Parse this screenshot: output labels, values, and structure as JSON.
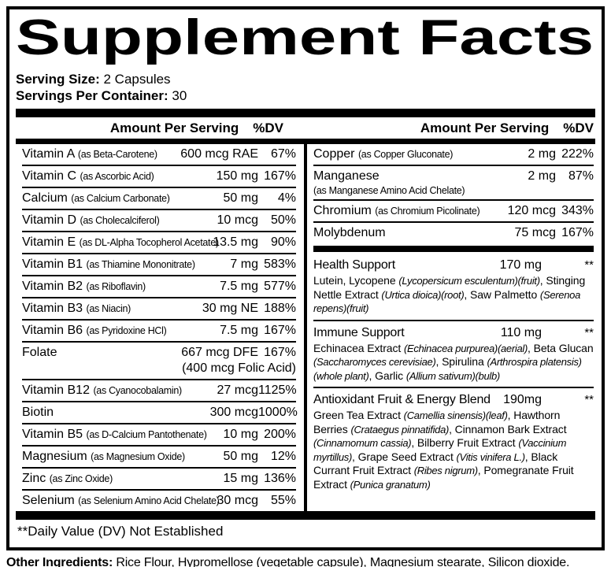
{
  "title": "Supplement Facts",
  "serving": {
    "size_label": "Serving Size:",
    "size_value": "2 Capsules",
    "per_container_label": "Servings Per Container:",
    "per_container_value": "30"
  },
  "columns": {
    "amount_header": "Amount Per Serving",
    "dv_header": "%DV"
  },
  "left_rows": [
    {
      "name": "Vitamin A",
      "form": "(as Beta-Carotene)",
      "amount": "600 mcg RAE",
      "dv": "67%"
    },
    {
      "name": "Vitamin C",
      "form": "(as Ascorbic Acid)",
      "amount": "150 mg",
      "dv": "167%"
    },
    {
      "name": "Calcium",
      "form": "(as Calcium Carbonate)",
      "amount": "50 mg",
      "dv": "4%"
    },
    {
      "name": "Vitamin D",
      "form": "(as Cholecalciferol)",
      "amount": "10 mcg",
      "dv": "50%"
    },
    {
      "name": "Vitamin E",
      "form": "(as DL-Alpha Tocopherol Acetate)",
      "amount": "13.5 mg",
      "dv": "90%"
    },
    {
      "name": "Vitamin B1",
      "form": "(as Thiamine Mononitrate)",
      "amount": "7 mg",
      "dv": "583%"
    },
    {
      "name": "Vitamin B2",
      "form": "(as Riboflavin)",
      "amount": "7.5 mg",
      "dv": "577%"
    },
    {
      "name": "Vitamin B3",
      "form": "(as Niacin)",
      "amount": "30 mg NE",
      "dv": "188%"
    },
    {
      "name": "Vitamin B6",
      "form": "(as Pyridoxine HCl)",
      "amount": "7.5 mg",
      "dv": "167%"
    },
    {
      "name": "Folate",
      "amount": "667 mcg DFE",
      "amount2": "(400 mcg Folic Acid)",
      "dv": "167%"
    },
    {
      "name": "Vitamin B12",
      "form": "(as Cyanocobalamin)",
      "amount": "27 mcg",
      "dv": "1125%"
    },
    {
      "name": "Biotin",
      "amount": "300 mcg",
      "dv": "1000%"
    },
    {
      "name": "Vitamin B5",
      "form": "(as D-Calcium Pantothenate)",
      "amount": "10 mg",
      "dv": "200%"
    },
    {
      "name": "Magnesium",
      "form": "(as Magnesium Oxide)",
      "amount": "50 mg",
      "dv": "12%"
    },
    {
      "name": "Zinc",
      "form": "(as Zinc Oxide)",
      "amount": "15 mg",
      "dv": "136%"
    },
    {
      "name": "Selenium",
      "form": "(as Selenium Amino Acid Chelate)",
      "amount": "30 mcg",
      "dv": "55%"
    }
  ],
  "right_minerals": [
    {
      "name": "Copper",
      "form": "(as Copper Gluconate)",
      "amount": "2 mg",
      "dv": "222%"
    },
    {
      "name": "Manganese",
      "form_below": "(as Manganese Amino Acid Chelate)",
      "amount": "2 mg",
      "dv": "87%"
    },
    {
      "name": "Chromium",
      "form": "(as Chromium Picolinate)",
      "amount": "120 mcg",
      "dv": "343%"
    },
    {
      "name": "Molybdenum",
      "amount": "75 mcg",
      "dv": "167%"
    }
  ],
  "blends": [
    {
      "name": "Health Support",
      "amount": "170 mg",
      "dv": "**",
      "desc": [
        {
          "text": "Lutein, Lycopene ",
          "italic": false
        },
        {
          "text": "(Lycopersicum esculentum)(fruit)",
          "italic": true
        },
        {
          "text": ", Stinging Nettle Extract ",
          "italic": false
        },
        {
          "text": "(Urtica dioica)(root)",
          "italic": true
        },
        {
          "text": ", Saw Palmetto ",
          "italic": false
        },
        {
          "text": "(Serenoa repens)(fruit)",
          "italic": true
        }
      ]
    },
    {
      "name": "Immune Support",
      "amount": "110 mg",
      "dv": "**",
      "desc": [
        {
          "text": "Echinacea Extract ",
          "italic": false
        },
        {
          "text": "(Echinacea purpurea)(aerial)",
          "italic": true
        },
        {
          "text": ", Beta Glucan ",
          "italic": false
        },
        {
          "text": "(Saccharomyces cerevisiae)",
          "italic": true
        },
        {
          "text": ", Spirulina ",
          "italic": false
        },
        {
          "text": "(Arthrospira platensis)(whole plant)",
          "italic": true
        },
        {
          "text": ", Garlic ",
          "italic": false
        },
        {
          "text": "(Allium sativum)(bulb)",
          "italic": true
        }
      ]
    },
    {
      "name": "Antioxidant Fruit & Energy Blend",
      "amount": "190mg",
      "dv": "**",
      "desc": [
        {
          "text": "Green Tea Extract ",
          "italic": false
        },
        {
          "text": "(Camellia sinensis)(leaf)",
          "italic": true
        },
        {
          "text": ", Hawthorn Berries ",
          "italic": false
        },
        {
          "text": "(Crataegus pinnatifida)",
          "italic": true
        },
        {
          "text": ", Cinnamon Bark Extract ",
          "italic": false
        },
        {
          "text": "(Cinnamomum cassia)",
          "italic": true
        },
        {
          "text": ", Bilberry Fruit Extract ",
          "italic": false
        },
        {
          "text": "(Vaccinium myrtillus)",
          "italic": true
        },
        {
          "text": ", Grape Seed Extract ",
          "italic": false
        },
        {
          "text": "(Vitis vinifera L.)",
          "italic": true
        },
        {
          "text": ", Black Currant Fruit Extract ",
          "italic": false
        },
        {
          "text": "(Ribes nigrum)",
          "italic": true
        },
        {
          "text": ", Pomegranate Fruit Extract ",
          "italic": false
        },
        {
          "text": "(Punica granatum)",
          "italic": true
        }
      ]
    }
  ],
  "footnote": "**Daily Value (DV) Not Established",
  "other_ingredients": {
    "label": "Other Ingredients:",
    "value": "Rice Flour, Hypromellose (vegetable capsule), Magnesium stearate, Silicon dioxide."
  }
}
